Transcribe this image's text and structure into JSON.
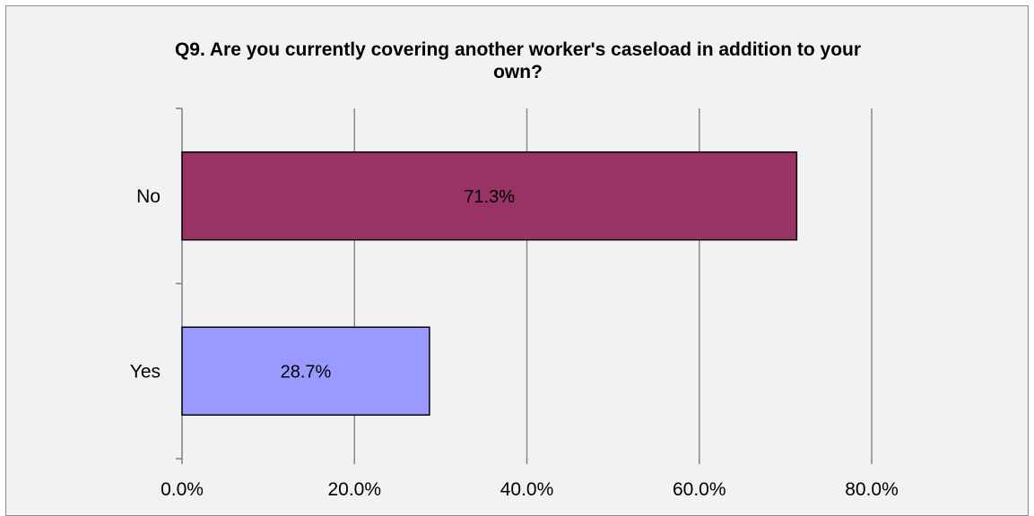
{
  "chart_data": {
    "type": "bar",
    "orientation": "horizontal",
    "title_lines": [
      "Q9. Are you currently covering another worker's caseload in addition to your",
      "own?"
    ],
    "categories": [
      "No",
      "Yes"
    ],
    "values": [
      71.3,
      28.7
    ],
    "data_labels": [
      "71.3%",
      "28.7%"
    ],
    "colors": [
      "#993366",
      "#9999ff"
    ],
    "xlim": [
      0,
      80
    ],
    "xticks": [
      0,
      20,
      40,
      60,
      80
    ],
    "xtick_labels": [
      "0.0%",
      "20.0%",
      "40.0%",
      "60.0%",
      "80.0%"
    ],
    "grid": "vertical",
    "legend": "none"
  }
}
